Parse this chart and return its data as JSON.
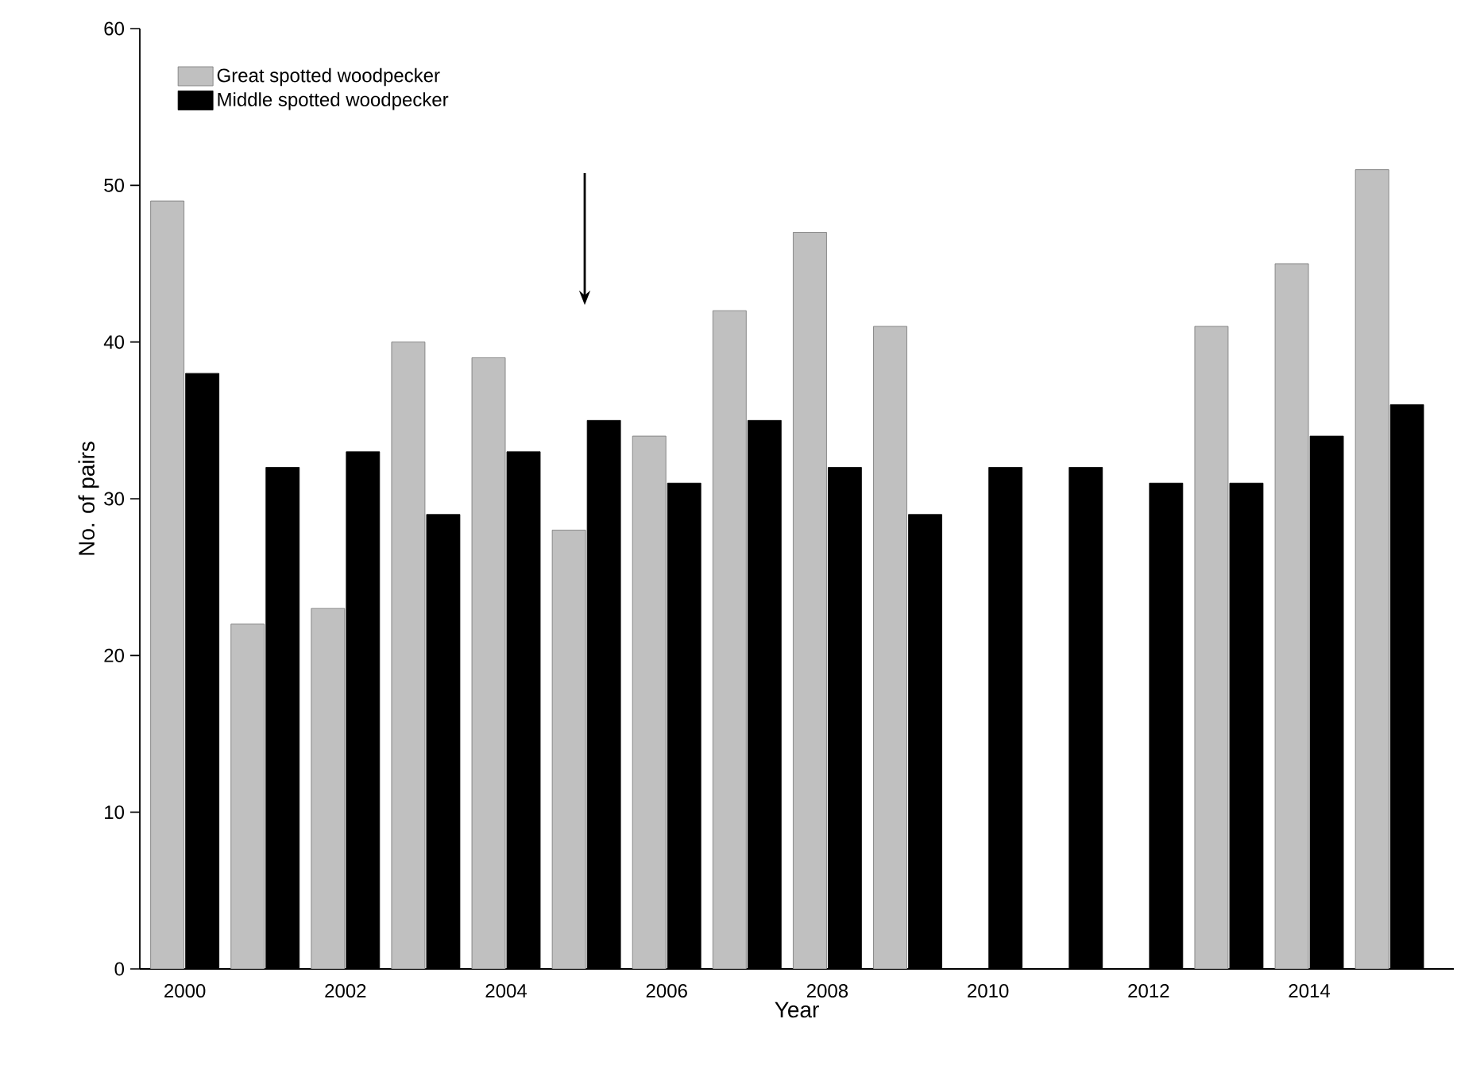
{
  "chart_data": {
    "type": "bar",
    "xlabel": "Year",
    "ylabel": "No. of pairs",
    "categories": [
      "2000",
      null,
      "2002",
      null,
      "2004",
      null,
      "2006",
      null,
      "2008",
      null,
      "2010",
      null,
      "2012",
      null,
      "2014",
      null
    ],
    "series": [
      {
        "name": "Great spotted woodpecker",
        "color": "#c0c0c0",
        "values": [
          49,
          22,
          23,
          40,
          39,
          28,
          34,
          42,
          47,
          41,
          null,
          null,
          null,
          41,
          45,
          51
        ]
      },
      {
        "name": "Middle spotted woodpecker",
        "color": "#000000",
        "values": [
          38,
          32,
          33,
          29,
          33,
          35,
          31,
          35,
          32,
          29,
          32,
          32,
          31,
          31,
          34,
          36
        ]
      }
    ],
    "ylim": [
      0,
      60
    ],
    "yticks": [
      0,
      10,
      20,
      30,
      40,
      50,
      60
    ],
    "legend": "top left"
  }
}
